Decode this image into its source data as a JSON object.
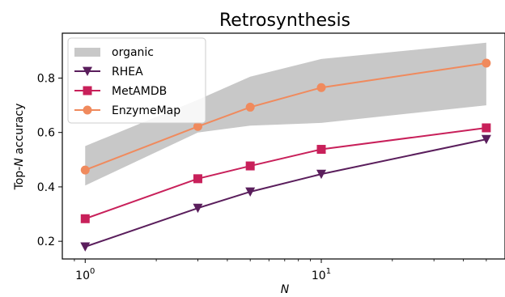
{
  "chart_data": {
    "type": "line",
    "title": "Retrosynthesis",
    "xlabel_prefix": "",
    "xlabel_italic": "N",
    "ylabel_prefix": "Top-",
    "ylabel_italic": "N",
    "ylabel_suffix": " accuracy",
    "xscale": "log",
    "xlim": [
      0.8,
      60
    ],
    "ylim": [
      0.135,
      0.965
    ],
    "xticks": [
      {
        "value": 1,
        "base": "10",
        "exp": "0"
      },
      {
        "value": 10,
        "base": "10",
        "exp": "1"
      }
    ],
    "yticks": [
      {
        "value": 0.2,
        "label": "0.2"
      },
      {
        "value": 0.4,
        "label": "0.4"
      },
      {
        "value": 0.6,
        "label": "0.6"
      },
      {
        "value": 0.8,
        "label": "0.8"
      }
    ],
    "x": [
      1,
      3,
      5,
      10,
      50
    ],
    "band": {
      "name": "organic",
      "color": "#c8c8c8",
      "lower": [
        0.405,
        0.6,
        0.625,
        0.635,
        0.7
      ],
      "upper": [
        0.55,
        0.72,
        0.805,
        0.87,
        0.93
      ]
    },
    "series": [
      {
        "name": "RHEA",
        "color": "#5a1e5c",
        "marker": "triangle-down",
        "values": [
          0.18,
          0.322,
          0.382,
          0.447,
          0.575
        ]
      },
      {
        "name": "MetAMDB",
        "color": "#c8205a",
        "marker": "square",
        "values": [
          0.283,
          0.43,
          0.477,
          0.538,
          0.617
        ]
      },
      {
        "name": "EnzymeMap",
        "color": "#f08a5d",
        "marker": "circle",
        "values": [
          0.462,
          0.622,
          0.693,
          0.765,
          0.855
        ]
      }
    ],
    "legend_position": "upper-left",
    "grid": false
  }
}
